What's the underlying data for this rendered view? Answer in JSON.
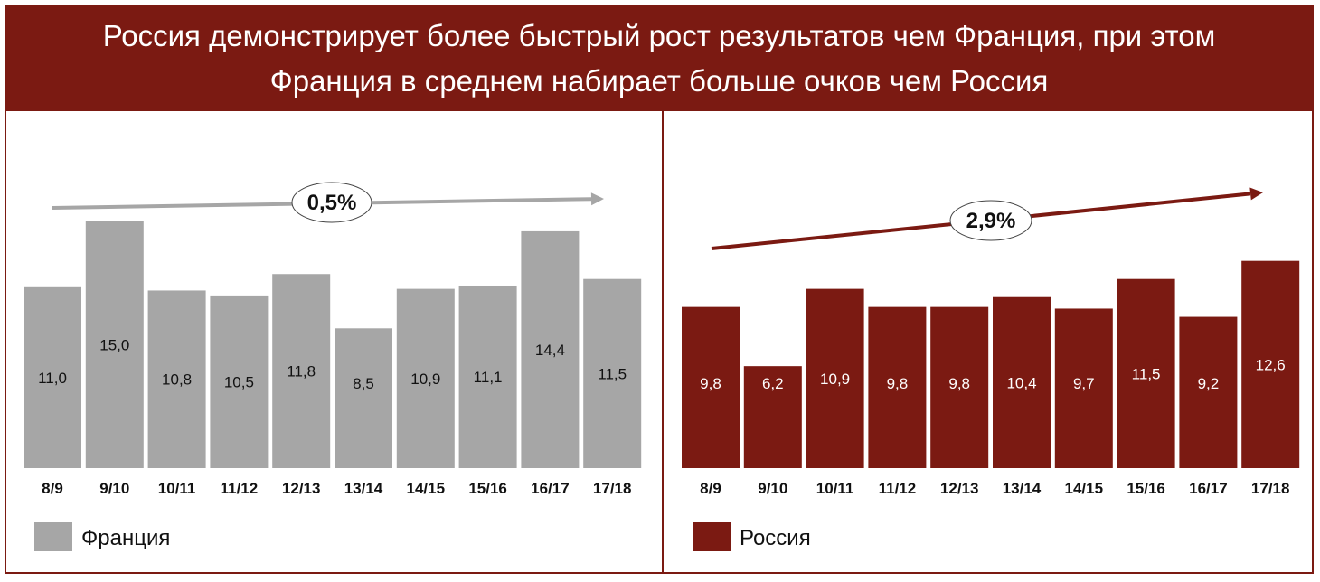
{
  "header": {
    "line1": "Россия демонстрирует более быстрый рост результатов чем Франция, при этом",
    "line2": "Франция в среднем набирает больше очков чем Россия"
  },
  "chart_data": [
    {
      "type": "bar",
      "categories": [
        "8/9",
        "9/10",
        "10/11",
        "11/12",
        "12/13",
        "13/14",
        "14/15",
        "15/16",
        "16/17",
        "17/18"
      ],
      "series": [
        {
          "name": "Франция",
          "values": [
            11.0,
            15.0,
            10.8,
            10.5,
            11.8,
            8.5,
            10.9,
            11.1,
            14.4,
            11.5
          ],
          "labels": [
            "11,0",
            "15,0",
            "10,8",
            "10,5",
            "11,8",
            "8,5",
            "10,9",
            "11,1",
            "14,4",
            "11,5"
          ]
        }
      ],
      "color": "#a6a6a6",
      "value_label_color": "#111111",
      "growth_label": "0,5%",
      "trend_color": "#a6a6a6",
      "legend_position": "bottom-left"
    },
    {
      "type": "bar",
      "categories": [
        "8/9",
        "9/10",
        "10/11",
        "11/12",
        "12/13",
        "13/14",
        "14/15",
        "15/16",
        "16/17",
        "17/18"
      ],
      "series": [
        {
          "name": "Россия",
          "values": [
            9.8,
            6.2,
            10.9,
            9.8,
            9.8,
            10.4,
            9.7,
            11.5,
            9.2,
            12.6
          ],
          "labels": [
            "9,8",
            "6,2",
            "10,9",
            "9,8",
            "9,8",
            "10,4",
            "9,7",
            "11,5",
            "9,2",
            "12,6"
          ]
        }
      ],
      "color": "#7b1a12",
      "value_label_color": "#ffffff",
      "growth_label": "2,9%",
      "trend_color": "#7b1a12",
      "legend_position": "bottom-left"
    }
  ]
}
